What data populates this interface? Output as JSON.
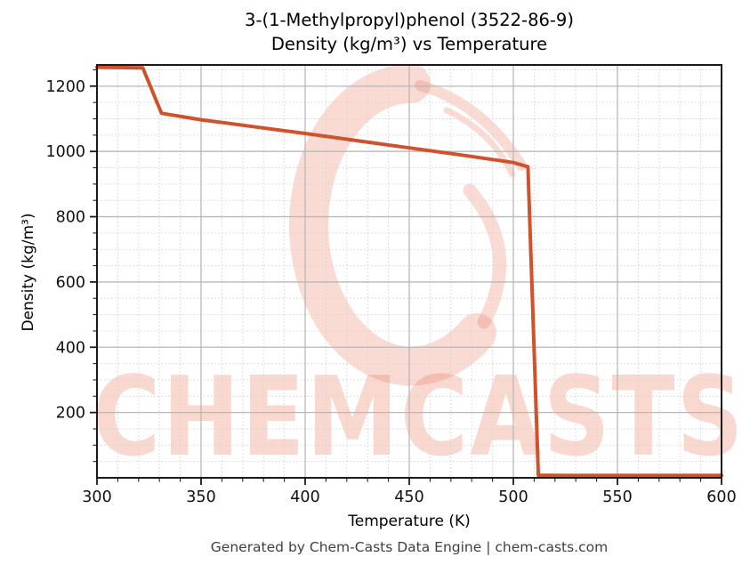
{
  "title": {
    "line1": "3-(1-Methylpropyl)phenol (3522-86-9)",
    "line2": "Density (kg/m³) vs Temperature"
  },
  "footer": "Generated by Chem-Casts Data Engine | chem-casts.com",
  "watermark": {
    "text": "CHEMCASTS",
    "logo": "chemcasts-brush-swirl-logo",
    "color": "#e8694a"
  },
  "chart_data": {
    "type": "line",
    "title": "3-(1-Methylpropyl)phenol (3522-86-9) Density (kg/m³) vs Temperature",
    "xlabel": "Temperature (K)",
    "ylabel": "Density (kg/m³)",
    "xlim": [
      300,
      600
    ],
    "ylim": [
      0,
      1265
    ],
    "x_major_ticks": [
      300,
      350,
      400,
      450,
      500,
      550,
      600
    ],
    "y_major_ticks": [
      200,
      400,
      600,
      800,
      1000,
      1200
    ],
    "x_minor_step": 10,
    "y_minor_step": 50,
    "grid": {
      "major": "solid",
      "minor": "dotted",
      "major_color": "#b8b8b8",
      "minor_color": "#d4d4d4"
    },
    "legend": "none",
    "line_color": "#d0522a",
    "line_width": 4,
    "series": [
      {
        "name": "Density",
        "points": [
          [
            300,
            1258
          ],
          [
            310,
            1257
          ],
          [
            322,
            1256
          ],
          [
            331,
            1117
          ],
          [
            350,
            1097
          ],
          [
            375,
            1076
          ],
          [
            400,
            1055
          ],
          [
            425,
            1033
          ],
          [
            450,
            1011
          ],
          [
            475,
            989
          ],
          [
            500,
            966
          ],
          [
            507,
            953
          ],
          [
            512,
            8
          ],
          [
            525,
            7
          ],
          [
            550,
            7
          ],
          [
            575,
            7
          ],
          [
            600,
            7
          ]
        ]
      }
    ]
  }
}
